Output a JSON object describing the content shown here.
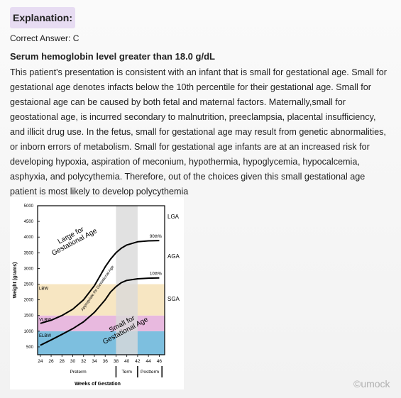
{
  "header": {
    "title": "Explanation:"
  },
  "answer": "Correct Answer: C",
  "heading": "Serum hemoglobin level greater than 18.0 g/dL",
  "body": "This patient's presentation is consistent with an infant that is small for gestational age. Small for gestational age denotes infacts below the 10th percentile for their gestational age. Small for gestaional age can be caused by both fetal and maternal factors. Maternally,small for geostational age, is incurred secondary to malnutrition, preeclampsia, placental insufficiency, and illicit drug use. In the fetus, small for gestational age may result from genetic abnormalities, or inborn errors of metabolism. Small for gestational age infants are at an increased risk for developing hypoxia, aspiration of meconium, hypothermia, hypoglycemia, hypocalcemia, asphyxia, and polycythemia. Therefore, out of the choices given this small gestational age patient is most likely to develop polycythemia",
  "watermark": "©umock",
  "chart_data": {
    "type": "line",
    "x_label": "Weeks of Gestation",
    "y_label": "Weight (grams)",
    "xlim": [
      23.5,
      47
    ],
    "ylim": [
      250,
      5000
    ],
    "xticks": [
      24,
      26,
      28,
      30,
      32,
      34,
      36,
      38,
      40,
      42,
      44,
      46
    ],
    "yticks": [
      500,
      1000,
      1500,
      2000,
      2500,
      3000,
      3500,
      4000,
      4500,
      5000
    ],
    "bands": [
      {
        "label": "ELBW",
        "low": 250,
        "high": 1000,
        "color": "#7dbfdf"
      },
      {
        "label": "VLBW",
        "low": 1000,
        "high": 1500,
        "color": "#e8b9df"
      },
      {
        "label": "LBW",
        "low": 1500,
        "high": 2500,
        "color": "#f7e6c2"
      }
    ],
    "shade": {
      "from": 38,
      "to": 42,
      "color": "#d9d9d9"
    },
    "periods": [
      {
        "label": "Preterm",
        "from": 24,
        "to": 38
      },
      {
        "label": "Term",
        "from": 38,
        "to": 42
      },
      {
        "label": "Postterm",
        "from": 42,
        "to": 46.5
      }
    ],
    "size_labels": [
      "LGA",
      "AGA",
      "SGA"
    ],
    "annotations": [
      [
        "Large for",
        "Gestational Age"
      ],
      [
        "Appropriate for Gestational Age"
      ],
      [
        "Small for",
        "Gestational Age"
      ]
    ],
    "series": [
      {
        "name": "90th%",
        "color": "#000000",
        "x": [
          24,
          26,
          28,
          30,
          32,
          34,
          35,
          36,
          37,
          38,
          39,
          40,
          42,
          44,
          46
        ],
        "values": [
          1250,
          1350,
          1500,
          1700,
          2000,
          2450,
          2750,
          3050,
          3300,
          3500,
          3650,
          3750,
          3850,
          3880,
          3890
        ]
      },
      {
        "name": "10th%",
        "color": "#000000",
        "x": [
          24,
          26,
          28,
          30,
          32,
          34,
          35,
          36,
          37,
          38,
          39,
          40,
          42,
          44,
          46
        ],
        "values": [
          550,
          720,
          900,
          1080,
          1300,
          1600,
          1800,
          2000,
          2250,
          2420,
          2550,
          2620,
          2670,
          2690,
          2700
        ]
      }
    ]
  }
}
